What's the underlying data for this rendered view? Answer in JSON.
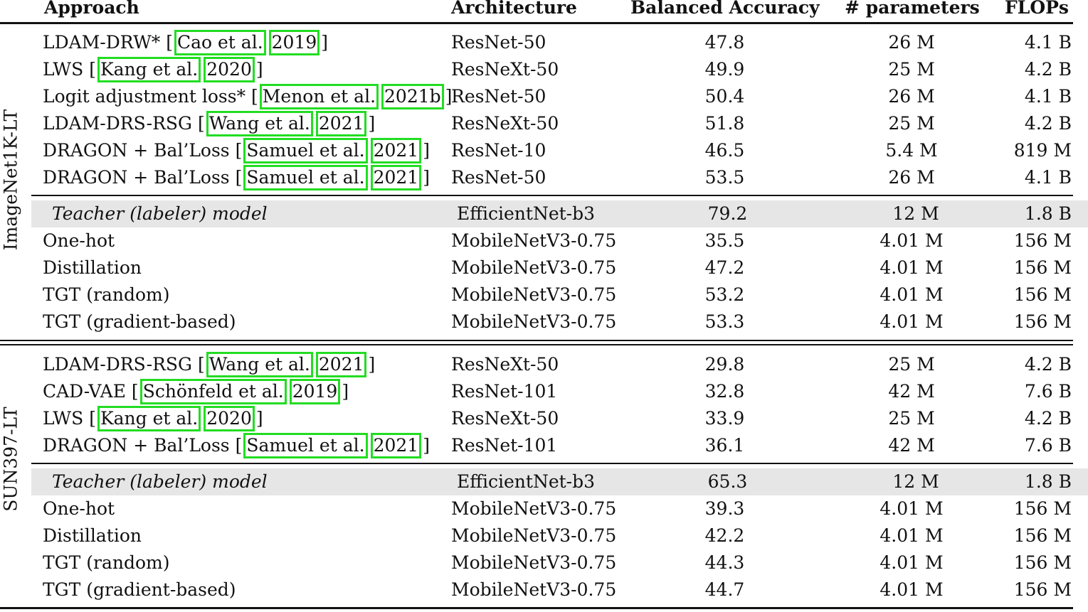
{
  "header": {
    "approach": "Approach",
    "architecture": "Architecture",
    "balanced_accuracy": "Balanced Accuracy",
    "num_parameters": "# parameters",
    "flops": "FLOPs"
  },
  "groups": {
    "imagenet": "ImageNet1K-LT",
    "sun": "SUN397-LT"
  },
  "rows": [
    {
      "pre": "LDAM-DRW* [",
      "cite_author": "Cao et al.",
      "cite_year": "2019",
      "post": "]",
      "arch": "ResNet-50",
      "acc": "47.8",
      "params": "26 M",
      "flops": "4.1 B"
    },
    {
      "pre": "LWS [",
      "cite_author": "Kang et al.",
      "cite_year": "2020",
      "post": "]",
      "arch": "ResNeXt-50",
      "acc": "49.9",
      "params": "25 M",
      "flops": "4.2 B"
    },
    {
      "pre": "Logit adjustment loss* [",
      "cite_author": "Menon et al.",
      "cite_year": "2021b",
      "post": "]",
      "arch": "ResNet-50",
      "acc": "50.4",
      "params": "26 M",
      "flops": "4.1 B"
    },
    {
      "pre": "LDAM-DRS-RSG [",
      "cite_author": "Wang et al.",
      "cite_year": "2021",
      "post": "]",
      "arch": "ResNeXt-50",
      "acc": "51.8",
      "params": "25 M",
      "flops": "4.2 B"
    },
    {
      "pre": "DRAGON + Bal’Loss [",
      "cite_author": "Samuel et al.",
      "cite_year": "2021",
      "post": "]",
      "arch": "ResNet-10",
      "acc": "46.5",
      "params": "5.4 M",
      "flops": "819 M"
    },
    {
      "pre": "DRAGON + Bal’Loss [",
      "cite_author": "Samuel et al.",
      "cite_year": "2021",
      "post": "]",
      "arch": "ResNet-50",
      "acc": "53.5",
      "params": "26 M",
      "flops": "4.1 B"
    },
    {
      "name": "Teacher (labeler) model",
      "arch": "EfficientNet-b3",
      "acc": "79.2",
      "params": "12 M",
      "flops": "1.8 B"
    },
    {
      "name": "One-hot",
      "arch": "MobileNetV3-0.75",
      "acc": "35.5",
      "params": "4.01 M",
      "flops": "156 M"
    },
    {
      "name": "Distillation",
      "arch": "MobileNetV3-0.75",
      "acc": "47.2",
      "params": "4.01 M",
      "flops": "156 M"
    },
    {
      "name": "TGT (random)",
      "arch": "MobileNetV3-0.75",
      "acc": "53.2",
      "params": "4.01 M",
      "flops": "156 M"
    },
    {
      "name": "TGT (gradient-based)",
      "arch": "MobileNetV3-0.75",
      "acc": "53.3",
      "params": "4.01 M",
      "flops": "156 M"
    },
    {
      "pre": "LDAM-DRS-RSG [",
      "cite_author": "Wang et al.",
      "cite_year": "2021",
      "post": "]",
      "arch": "ResNeXt-50",
      "acc": "29.8",
      "params": "25 M",
      "flops": "4.2 B"
    },
    {
      "pre": "CAD-VAE [",
      "cite_author": "Schönfeld et al.",
      "cite_year": "2019",
      "post": "]",
      "arch": "ResNet-101",
      "acc": "32.8",
      "params": "42 M",
      "flops": "7.6 B"
    },
    {
      "pre": "LWS [",
      "cite_author": "Kang et al.",
      "cite_year": "2020",
      "post": "]",
      "arch": "ResNeXt-50",
      "acc": "33.9",
      "params": "25 M",
      "flops": "4.2 B"
    },
    {
      "pre": "DRAGON + Bal’Loss [",
      "cite_author": "Samuel et al.",
      "cite_year": "2021",
      "post": "]",
      "arch": "ResNet-101",
      "acc": "36.1",
      "params": "42 M",
      "flops": "7.6 B"
    },
    {
      "name": "Teacher (labeler) model",
      "arch": "EfficientNet-b3",
      "acc": "65.3",
      "params": "12 M",
      "flops": "1.8 B"
    },
    {
      "name": "One-hot",
      "arch": "MobileNetV3-0.75",
      "acc": "39.3",
      "params": "4.01 M",
      "flops": "156 M"
    },
    {
      "name": "Distillation",
      "arch": "MobileNetV3-0.75",
      "acc": "42.2",
      "params": "4.01 M",
      "flops": "156 M"
    },
    {
      "name": "TGT (random)",
      "arch": "MobileNetV3-0.75",
      "acc": "44.3",
      "params": "4.01 M",
      "flops": "156 M"
    },
    {
      "name": "TGT (gradient-based)",
      "arch": "MobileNetV3-0.75",
      "acc": "44.7",
      "params": "4.01 M",
      "flops": "156 M"
    }
  ]
}
